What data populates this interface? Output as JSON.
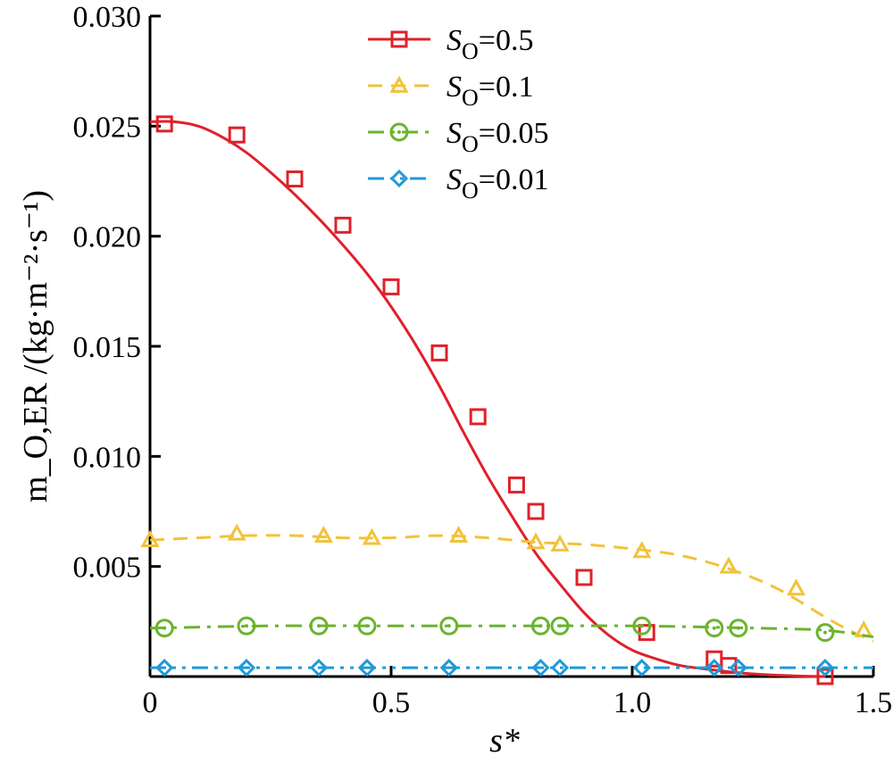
{
  "chart_data": {
    "type": "line",
    "xlabel": "s*",
    "ylabel": "m_O,ER /(kg·m⁻²·s⁻¹)",
    "xlim": [
      0,
      1.5
    ],
    "ylim": [
      0,
      0.03
    ],
    "xticks": [
      "0",
      "0.5",
      "1.0",
      "1.5"
    ],
    "yticks": [
      "0.005",
      "0.010",
      "0.015",
      "0.020",
      "0.025",
      "0.030"
    ],
    "grid": false,
    "legend_position": "top-center",
    "series": [
      {
        "name": "S_O=0.5",
        "name_base": "S",
        "name_sub": "O",
        "name_value": "=0.5",
        "color": "#e0202a",
        "line_style": "solid",
        "marker": "square",
        "curve_x": [
          0.0,
          0.05,
          0.1,
          0.15,
          0.2,
          0.25,
          0.3,
          0.35,
          0.4,
          0.45,
          0.5,
          0.55,
          0.6,
          0.65,
          0.7,
          0.75,
          0.8,
          0.85,
          0.9,
          0.95,
          1.0,
          1.05,
          1.1,
          1.15,
          1.2,
          1.25,
          1.3,
          1.35,
          1.4
        ],
        "curve_y": [
          0.0252,
          0.0252,
          0.025,
          0.0245,
          0.0238,
          0.0229,
          0.0219,
          0.0208,
          0.0196,
          0.0183,
          0.0168,
          0.0151,
          0.0132,
          0.0111,
          0.0091,
          0.0073,
          0.0056,
          0.0042,
          0.0029,
          0.0019,
          0.0012,
          0.0008,
          0.0005,
          0.00035,
          0.00022,
          0.00012,
          6e-05,
          2e-05,
          0.0
        ],
        "marker_x": [
          0.03,
          0.18,
          0.3,
          0.4,
          0.5,
          0.6,
          0.68,
          0.76,
          0.8,
          0.9,
          1.03,
          1.17,
          1.2,
          1.4
        ],
        "marker_y": [
          0.0251,
          0.0246,
          0.0226,
          0.0205,
          0.0177,
          0.0147,
          0.0118,
          0.0087,
          0.0075,
          0.0045,
          0.002,
          0.0008,
          0.0005,
          0.0
        ]
      },
      {
        "name": "S_O=0.1",
        "name_base": "S",
        "name_sub": "O",
        "name_value": "=0.1",
        "color": "#f2c23a",
        "line_style": "dashed",
        "marker": "triangle",
        "curve_x": [
          0.0,
          0.1,
          0.2,
          0.3,
          0.4,
          0.5,
          0.6,
          0.7,
          0.8,
          0.9,
          1.0,
          1.1,
          1.2,
          1.3,
          1.4,
          1.45,
          1.5
        ],
        "curve_y": [
          0.0062,
          0.0063,
          0.0064,
          0.0064,
          0.0063,
          0.0063,
          0.0064,
          0.0063,
          0.0061,
          0.006,
          0.0058,
          0.0055,
          0.0049,
          0.004,
          0.0027,
          0.0021,
          0.0016
        ],
        "marker_x": [
          0.0,
          0.18,
          0.36,
          0.46,
          0.64,
          0.8,
          0.85,
          1.02,
          1.2,
          1.34,
          1.48
        ],
        "marker_y": [
          0.0062,
          0.0065,
          0.0064,
          0.0063,
          0.0064,
          0.0061,
          0.006,
          0.0057,
          0.005,
          0.004,
          0.0021
        ]
      },
      {
        "name": "S_O=0.05",
        "name_base": "S",
        "name_sub": "O",
        "name_value": "=0.05",
        "color": "#6ab42e",
        "line_style": "dashdot",
        "marker": "circle",
        "curve_x": [
          0.0,
          0.25,
          0.5,
          0.75,
          1.0,
          1.25,
          1.4,
          1.5
        ],
        "curve_y": [
          0.0022,
          0.0023,
          0.0023,
          0.0023,
          0.0023,
          0.0022,
          0.0021,
          0.0018
        ],
        "marker_x": [
          0.03,
          0.2,
          0.35,
          0.45,
          0.62,
          0.81,
          0.85,
          1.02,
          1.17,
          1.22,
          1.4
        ],
        "marker_y": [
          0.0022,
          0.0023,
          0.0023,
          0.0023,
          0.0023,
          0.0023,
          0.0023,
          0.0023,
          0.0022,
          0.0022,
          0.002
        ]
      },
      {
        "name": "S_O=0.01",
        "name_base": "S",
        "name_sub": "O",
        "name_value": "=0.01",
        "color": "#1f9ad7",
        "line_style": "dashdotdot",
        "marker": "diamond",
        "curve_x": [
          0.0,
          0.5,
          1.0,
          1.5
        ],
        "curve_y": [
          0.0004,
          0.0004,
          0.0004,
          0.0004
        ],
        "marker_x": [
          0.03,
          0.2,
          0.35,
          0.45,
          0.62,
          0.81,
          0.85,
          1.02,
          1.17,
          1.22,
          1.4
        ],
        "marker_y": [
          0.0004,
          0.0004,
          0.0004,
          0.0004,
          0.0004,
          0.0004,
          0.0004,
          0.0004,
          0.0004,
          0.0004,
          0.0004
        ]
      }
    ]
  }
}
